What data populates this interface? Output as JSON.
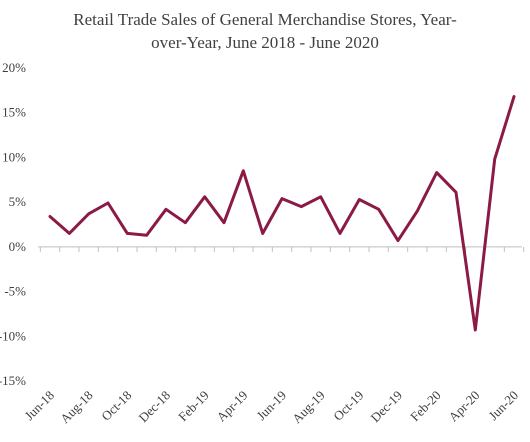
{
  "chart_data": {
    "type": "line",
    "title_line1": "Retail Trade Sales of General Merchandise Stores, Year-",
    "title_line2": "over-Year, June 2018 - June 2020",
    "xlabel": "",
    "ylabel": "",
    "ylim": [
      -15,
      20
    ],
    "yticks": [
      20,
      15,
      10,
      5,
      0,
      -5,
      -10,
      -15
    ],
    "ytick_labels": [
      "20%",
      "15%",
      "10%",
      "5%",
      "0%",
      "-5%",
      "-10%",
      "-15%"
    ],
    "grid": false,
    "legend": "none",
    "line_color": "#8b1a47",
    "x": [
      "Jun-18",
      "Jul-18",
      "Aug-18",
      "Sep-18",
      "Oct-18",
      "Nov-18",
      "Dec-18",
      "Jan-19",
      "Feb-19",
      "Mar-19",
      "Apr-19",
      "May-19",
      "Jun-19",
      "Jul-19",
      "Aug-19",
      "Sep-19",
      "Oct-19",
      "Nov-19",
      "Dec-19",
      "Jan-20",
      "Feb-20",
      "Mar-20",
      "Apr-20",
      "May-20",
      "Jun-20"
    ],
    "xtick_labels": [
      "Jun-18",
      "Aug-18",
      "Oct-18",
      "Dec-18",
      "Feb-19",
      "Apr-19",
      "Jun-19",
      "Aug-19",
      "Oct-19",
      "Dec-19",
      "Feb-20",
      "Apr-20",
      "Jun-20"
    ],
    "series": [
      {
        "values": [
          3.4,
          1.5,
          3.7,
          4.9,
          1.5,
          1.3,
          4.2,
          2.7,
          5.6,
          2.7,
          8.5,
          1.5,
          5.4,
          4.5,
          5.6,
          1.5,
          5.3,
          4.2,
          0.7,
          4.0,
          8.3,
          6.1,
          -9.3,
          9.8,
          16.8
        ]
      }
    ]
  }
}
